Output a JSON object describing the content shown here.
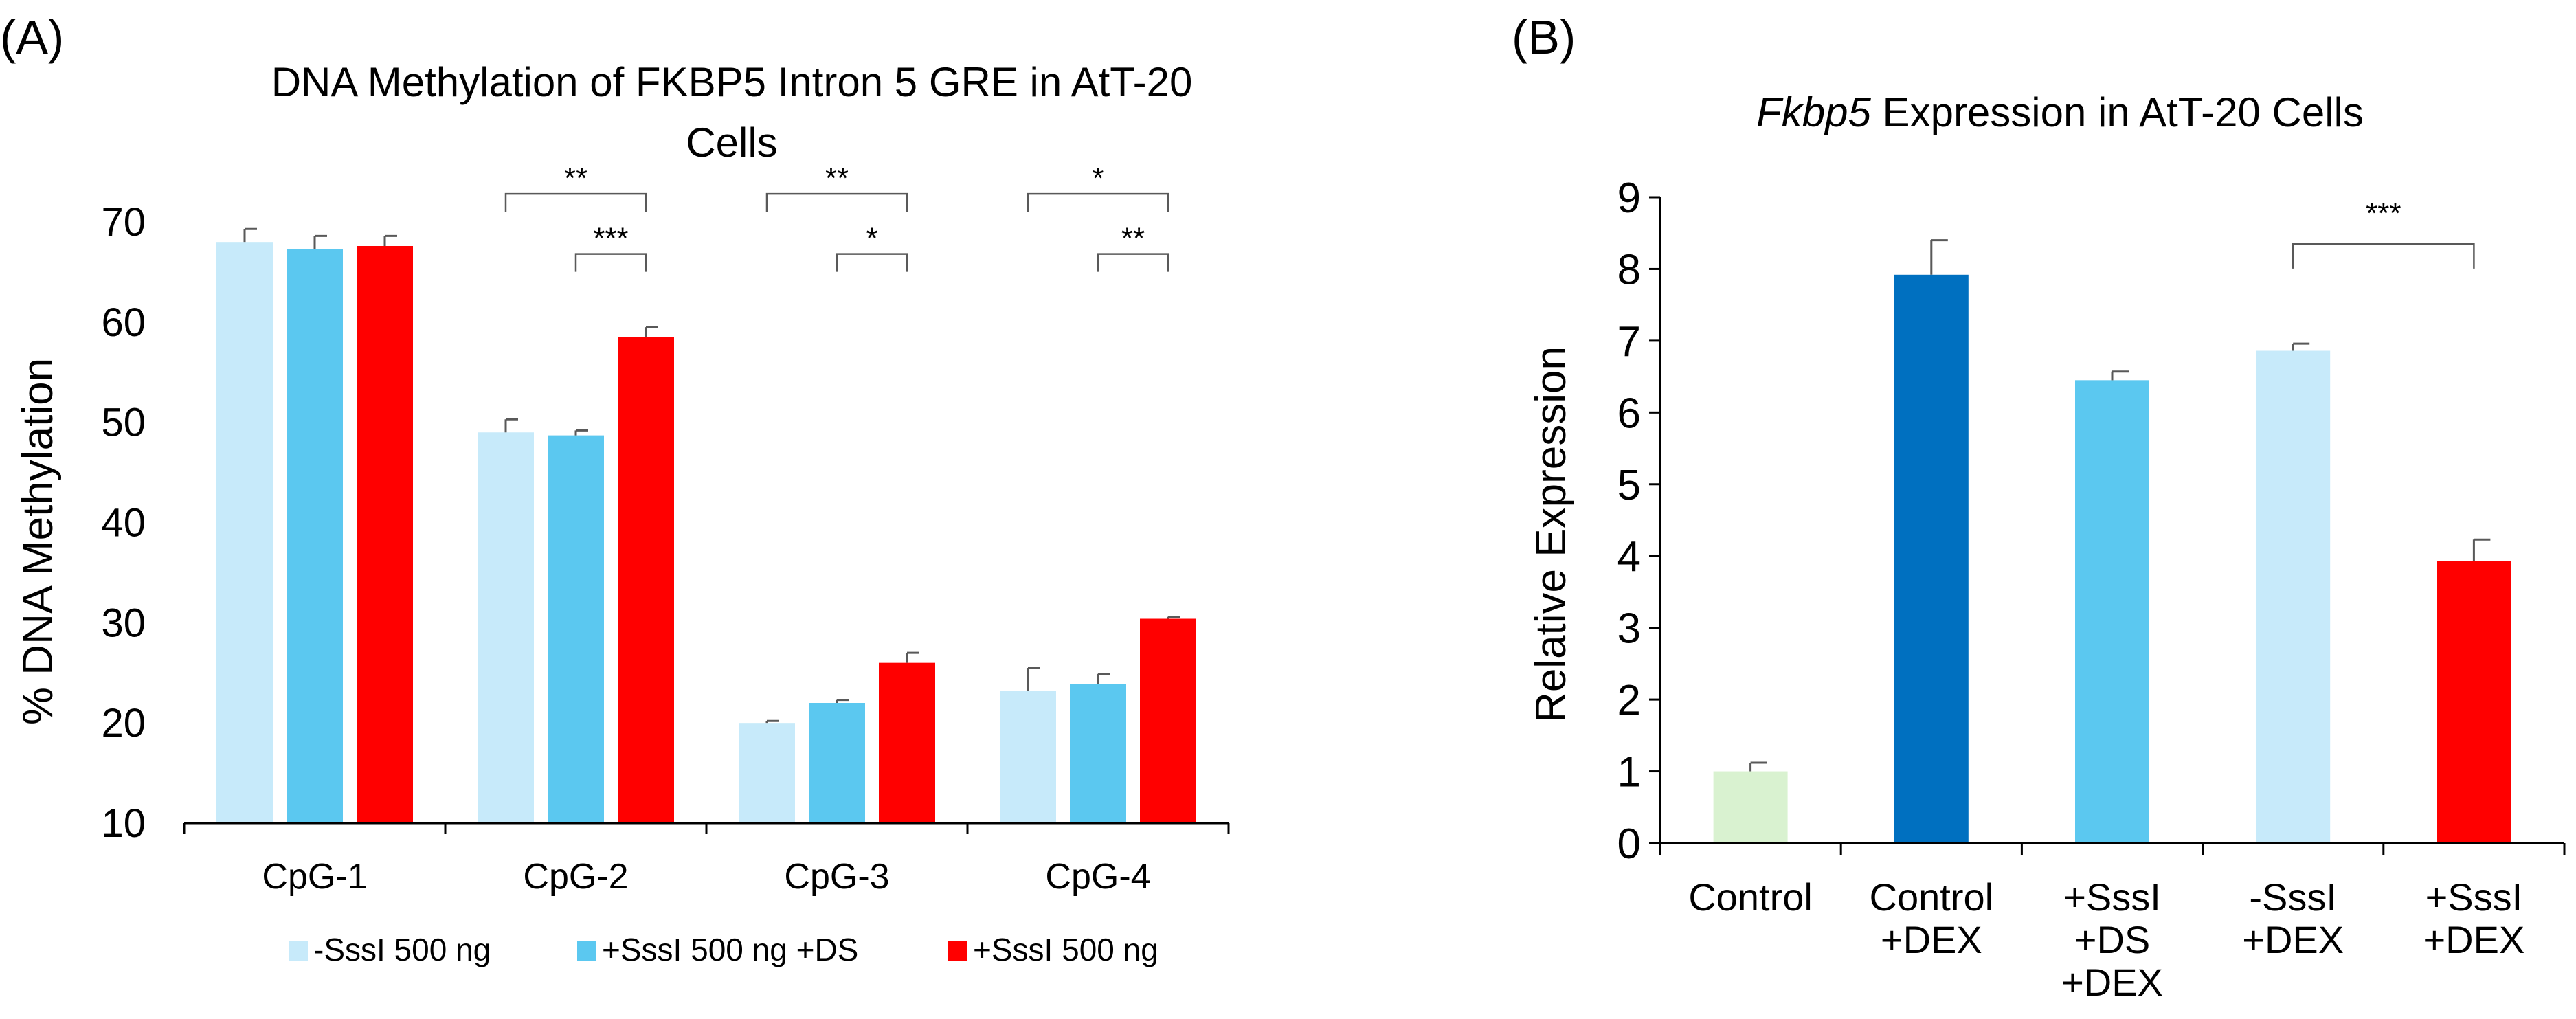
{
  "chart_data": [
    {
      "panel": "(A)",
      "type": "bar",
      "title": "DNA Methylation of FKBP5 Intron 5 GRE in AtT-20 Cells",
      "title_lines": [
        "DNA Methylation of FKBP5 Intron 5 GRE in AtT-20",
        "Cells"
      ],
      "xlabel": "",
      "ylabel": "% DNA Methylation",
      "ylim": [
        10,
        70
      ],
      "yticks": [
        "10",
        "20",
        "30",
        "40",
        "50",
        "60",
        "70"
      ],
      "categories": [
        "CpG-1",
        "CpG-2",
        "CpG-3",
        "CpG-4"
      ],
      "series": [
        {
          "name": "-SssI 500 ng",
          "color": "#C7EAFA",
          "values": [
            68.0,
            49.0,
            20.0,
            23.2
          ],
          "errors": [
            1.3,
            1.3,
            0.2,
            2.3
          ]
        },
        {
          "name": "+SssI 500 ng +DS",
          "color": "#5BC8F0",
          "values": [
            67.3,
            48.7,
            22.0,
            23.9
          ],
          "errors": [
            1.3,
            0.5,
            0.3,
            1.0
          ]
        },
        {
          "name": "+SssI 500 ng",
          "color": "#FF0000",
          "values": [
            67.6,
            58.5,
            26.0,
            30.4
          ],
          "errors": [
            1.0,
            1.0,
            1.0,
            0.2
          ]
        }
      ],
      "significance": [
        {
          "category": 1,
          "from_series": 0,
          "to_series": 2,
          "label": "**",
          "level_value": 72.8
        },
        {
          "category": 1,
          "from_series": 1,
          "to_series": 2,
          "label": "***",
          "level_value": 66.8
        },
        {
          "category": 2,
          "from_series": 0,
          "to_series": 2,
          "label": "**",
          "level_value": 72.8
        },
        {
          "category": 2,
          "from_series": 1,
          "to_series": 2,
          "label": "*",
          "level_value": 66.8
        },
        {
          "category": 3,
          "from_series": 0,
          "to_series": 2,
          "label": "*",
          "level_value": 72.8
        },
        {
          "category": 3,
          "from_series": 1,
          "to_series": 2,
          "label": "**",
          "level_value": 66.8
        }
      ],
      "legend_position": "bottom"
    },
    {
      "panel": "(B)",
      "type": "bar",
      "title_italic": "Fkbp5",
      "title_rest": " Expression in AtT-20 Cells",
      "xlabel": "",
      "ylabel": "Relative Expression",
      "ylim": [
        0,
        9
      ],
      "yticks": [
        "0",
        "1",
        "2",
        "3",
        "4",
        "5",
        "6",
        "7",
        "8",
        "9"
      ],
      "categories": [
        [
          "Control"
        ],
        [
          "Control",
          "+DEX"
        ],
        [
          "+SssI",
          "+DS",
          "+DEX"
        ],
        [
          "-SssI",
          "+DEX"
        ],
        [
          "+SssI",
          "+DEX"
        ]
      ],
      "values": [
        1.0,
        7.92,
        6.45,
        6.86,
        3.93
      ],
      "errors": [
        0.12,
        0.48,
        0.12,
        0.1,
        0.3
      ],
      "colors": [
        "#D9F2D0",
        "#0070C0",
        "#5BC8F0",
        "#C7EAFA",
        "#FF0000"
      ],
      "significance": [
        {
          "from": 3,
          "to": 4,
          "label": "***",
          "level_value": 8.35
        }
      ]
    }
  ]
}
